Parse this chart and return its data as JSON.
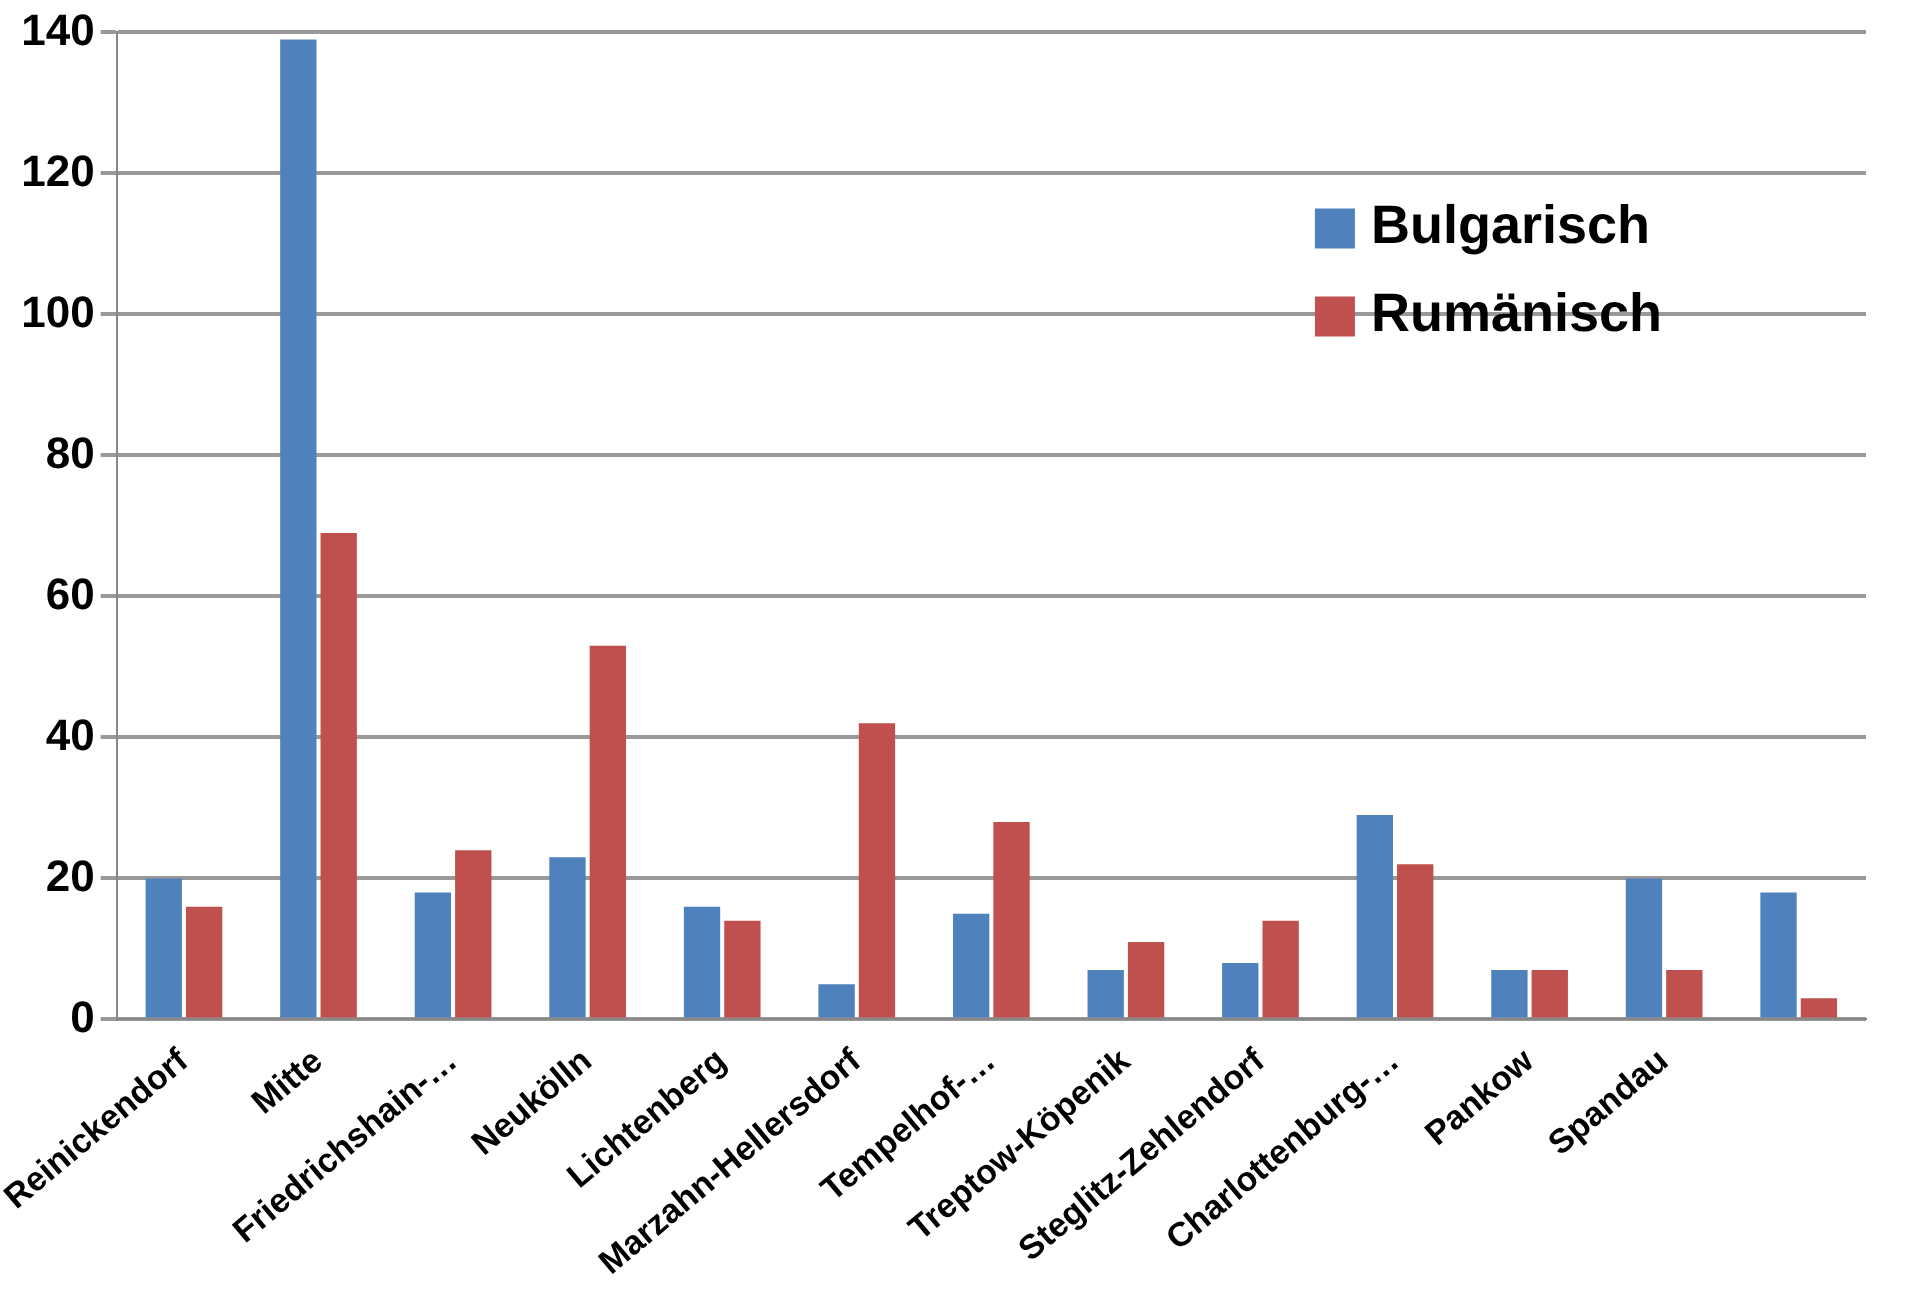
{
  "chart_data": {
    "type": "bar",
    "categories": [
      "Reinickendorf",
      "Mitte",
      "Friedrichshain-…",
      "Neukölln",
      "Lichtenberg",
      "Marzahn-Hellersdorf",
      "Tempelhof-…",
      "Treptow-Köpenik",
      "Steglitz-Zehlendorf",
      "Charlottenburg-…",
      "Pankow",
      "Spandau",
      null
    ],
    "series": [
      {
        "name": "Bulgarisch",
        "color": "#4f81bd",
        "values": [
          20,
          139,
          18,
          23,
          16,
          5,
          15,
          7,
          8,
          29,
          7,
          20,
          18
        ]
      },
      {
        "name": "Rumänisch",
        "color": "#c0504d",
        "values": [
          16,
          69,
          24,
          53,
          14,
          42,
          28,
          11,
          14,
          22,
          7,
          7,
          3
        ]
      }
    ],
    "ylim": [
      0,
      140
    ],
    "yticks": [
      0,
      20,
      40,
      60,
      80,
      100,
      120,
      140
    ],
    "grid": "y",
    "legend": "top right"
  }
}
